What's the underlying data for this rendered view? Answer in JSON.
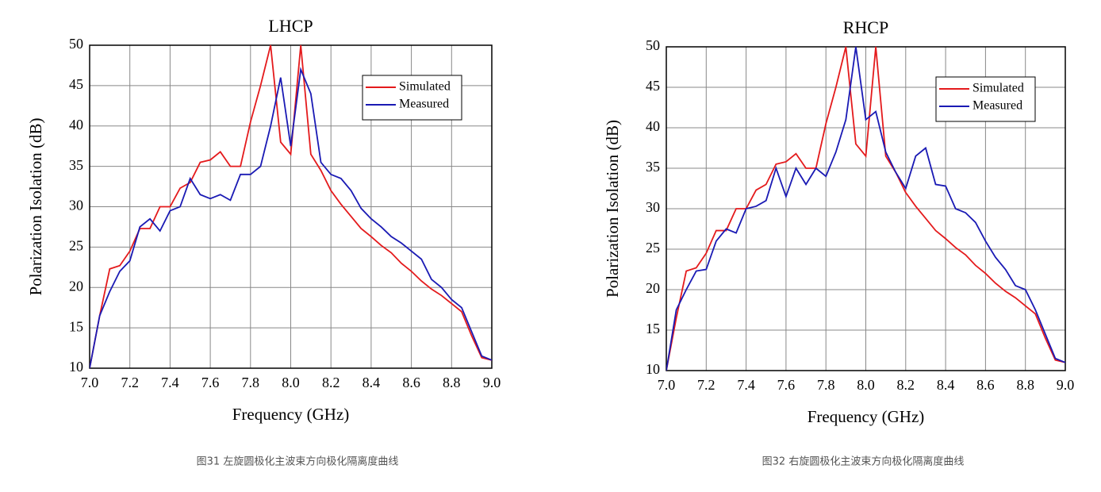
{
  "chart_data": [
    {
      "type": "line",
      "title": "LHCP",
      "x_label": "Frequency (GHz)",
      "y_label": "Polarization Isolation (dB)",
      "caption": "图31 左旋圆极化主波束方向极化隔离度曲线",
      "x": [
        7.0,
        7.05,
        7.1,
        7.15,
        7.2,
        7.25,
        7.3,
        7.35,
        7.4,
        7.45,
        7.5,
        7.55,
        7.6,
        7.65,
        7.7,
        7.75,
        7.8,
        7.85,
        7.9,
        7.95,
        8.0,
        8.05,
        8.1,
        8.15,
        8.2,
        8.25,
        8.3,
        8.35,
        8.4,
        8.45,
        8.5,
        8.55,
        8.6,
        8.65,
        8.7,
        8.75,
        8.8,
        8.85,
        8.9,
        8.95,
        9.0
      ],
      "series": [
        {
          "name": "Simulated",
          "color": "#e41a1c",
          "values": [
            10,
            16.5,
            22.3,
            22.7,
            24.5,
            27.3,
            27.3,
            30,
            30,
            32.3,
            33,
            35.5,
            35.8,
            36.8,
            35,
            35,
            40.5,
            45,
            50,
            38,
            36.5,
            50,
            36.5,
            34.5,
            32,
            30.3,
            28.8,
            27.3,
            26.3,
            25.2,
            24.3,
            23,
            22,
            20.8,
            19.8,
            19,
            18,
            17,
            14,
            11.3,
            11
          ]
        },
        {
          "name": "Measured",
          "color": "#1a1ab4",
          "values": [
            10,
            16.5,
            19.5,
            22,
            23.3,
            27.5,
            28.5,
            27,
            29.5,
            30,
            33.5,
            31.5,
            31,
            31.5,
            30.8,
            34,
            34,
            35,
            40,
            46,
            37.5,
            47,
            44,
            35.5,
            34,
            33.5,
            32,
            29.8,
            28.5,
            27.5,
            26.3,
            25.5,
            24.5,
            23.5,
            21,
            20,
            18.5,
            17.5,
            14.5,
            11.5,
            11
          ]
        }
      ],
      "xlim": [
        7.0,
        9.0
      ],
      "ylim": [
        10,
        50
      ],
      "xticks": [
        {
          "value": 7.0,
          "label": "7.0"
        },
        {
          "value": 7.2,
          "label": "7.2"
        },
        {
          "value": 7.4,
          "label": "7.4"
        },
        {
          "value": 7.6,
          "label": "7.6"
        },
        {
          "value": 7.8,
          "label": "7.8"
        },
        {
          "value": 8.0,
          "label": "8.0"
        },
        {
          "value": 8.2,
          "label": "8.2"
        },
        {
          "value": 8.4,
          "label": "8.4"
        },
        {
          "value": 8.6,
          "label": "8.6"
        },
        {
          "value": 8.8,
          "label": "8.8"
        },
        {
          "value": 9.0,
          "label": "9.0"
        }
      ],
      "yticks": [
        10,
        15,
        20,
        25,
        30,
        35,
        40,
        45,
        50
      ],
      "grid": true,
      "legend": "upper right"
    },
    {
      "type": "line",
      "title": "RHCP",
      "x_label": "Frequency (GHz)",
      "y_label": "Polarization Isolation (dB)",
      "caption": "图32 右旋圆极化主波束方向极化隔离度曲线",
      "x": [
        7.0,
        7.05,
        7.1,
        7.15,
        7.2,
        7.25,
        7.3,
        7.35,
        7.4,
        7.45,
        7.5,
        7.55,
        7.6,
        7.65,
        7.7,
        7.75,
        7.8,
        7.85,
        7.9,
        7.95,
        8.0,
        8.05,
        8.1,
        8.15,
        8.2,
        8.25,
        8.3,
        8.35,
        8.4,
        8.45,
        8.5,
        8.55,
        8.6,
        8.65,
        8.7,
        8.75,
        8.8,
        8.85,
        8.9,
        8.95,
        9.0
      ],
      "series": [
        {
          "name": "Simulated",
          "color": "#e41a1c",
          "values": [
            10,
            16.5,
            22.3,
            22.7,
            24.5,
            27.3,
            27.3,
            30,
            30,
            32.3,
            33,
            35.5,
            35.8,
            36.8,
            35,
            35,
            40.5,
            45,
            50,
            38,
            36.5,
            50,
            36.5,
            34.5,
            32,
            30.3,
            28.8,
            27.3,
            26.3,
            25.2,
            24.3,
            23,
            22,
            20.8,
            19.8,
            19,
            18,
            17,
            14,
            11.3,
            11
          ]
        },
        {
          "name": "Measured",
          "color": "#1a1ab4",
          "values": [
            10,
            17.5,
            20,
            22.3,
            22.5,
            26,
            27.5,
            27,
            30,
            30.3,
            31,
            35,
            31.5,
            35,
            33,
            35,
            34,
            37,
            41,
            50,
            41,
            42,
            37,
            34.5,
            32.5,
            36.5,
            37.5,
            33,
            32.8,
            30,
            29.5,
            28.3,
            26,
            24,
            22.5,
            20.5,
            20,
            17.5,
            14.5,
            11.5,
            11
          ]
        }
      ],
      "xlim": [
        7.0,
        9.0
      ],
      "ylim": [
        10,
        50
      ],
      "xticks": [
        {
          "value": 7.0,
          "label": "7.0"
        },
        {
          "value": 7.2,
          "label": "7.2"
        },
        {
          "value": 7.4,
          "label": "7.4"
        },
        {
          "value": 7.6,
          "label": "7.6"
        },
        {
          "value": 7.8,
          "label": "7.8"
        },
        {
          "value": 8.0,
          "label": "8.0"
        },
        {
          "value": 8.2,
          "label": "8.2"
        },
        {
          "value": 8.4,
          "label": "8.4"
        },
        {
          "value": 8.6,
          "label": "8.6"
        },
        {
          "value": 8.8,
          "label": "8.8"
        },
        {
          "value": 9.0,
          "label": "9.0"
        }
      ],
      "yticks": [
        10,
        15,
        20,
        25,
        30,
        35,
        40,
        45,
        50
      ],
      "grid": true,
      "legend": "upper right"
    }
  ]
}
